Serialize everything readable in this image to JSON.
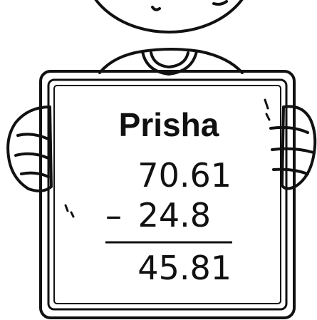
{
  "board": {
    "name": "Prisha",
    "minuend": "70.61",
    "operator": "–",
    "subtrahend": "24.8",
    "difference": "45.81"
  }
}
